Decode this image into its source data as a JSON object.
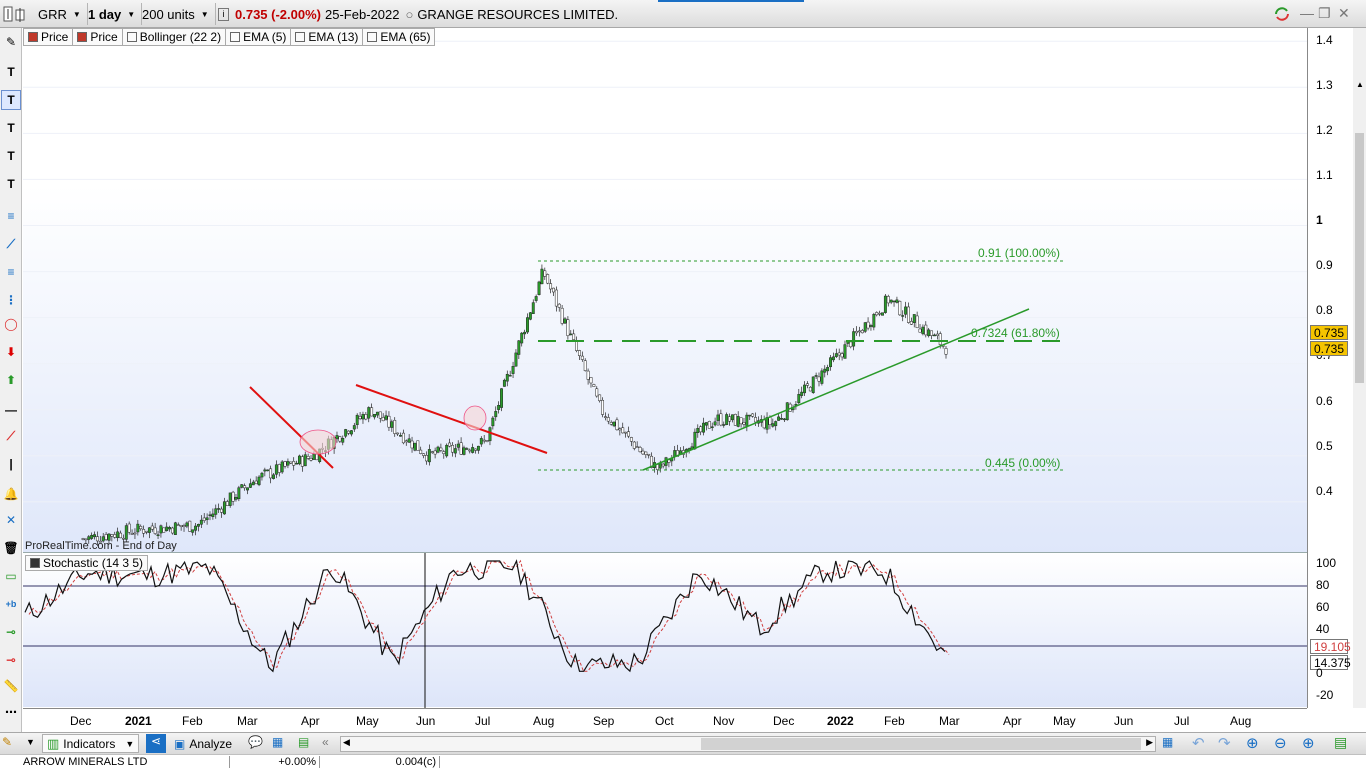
{
  "toolbar": {
    "ticker": "GRR",
    "timeframe": "1 day",
    "units": "200 units",
    "price_change": "0.735 (-2.00%)",
    "date": "25-Feb-2022",
    "company": "GRANGE RESOURCES LIMITED."
  },
  "legend": {
    "price_tab_1": "Price",
    "price_tab_2": "Price",
    "bollinger": "Bollinger (22 2)",
    "ema5": "EMA (5)",
    "ema13": "EMA (13)",
    "ema65": "EMA (65)"
  },
  "price_axis": {
    "ticks": [
      "1.4",
      "1.3",
      "1.2",
      "1.1",
      "1",
      "0.9",
      "0.8",
      "0.7",
      "0.6",
      "0.5",
      "0.4"
    ],
    "last_price": "0.735",
    "last_price_2": "0.735"
  },
  "fib": {
    "top_label": "0.91 (100.00%)",
    "mid_label": "0.7324 (61.80%)",
    "bottom_label": "0.445 (0.00%)"
  },
  "watermark": "ProRealTime.com - End of Day",
  "stochastic": {
    "title": "Stochastic (14 3 5)",
    "ticks": [
      "100",
      "80",
      "60",
      "40",
      "20",
      "0",
      "-20"
    ],
    "value_k": "19.105",
    "value_d": "14.375"
  },
  "xaxis": {
    "labels": [
      "Dec",
      "2021",
      "Feb",
      "Mar",
      "Apr",
      "May",
      "Jun",
      "Jul",
      "Aug",
      "Sep",
      "Oct",
      "Nov",
      "Dec",
      "2022",
      "Feb",
      "Mar",
      "Apr",
      "May",
      "Jun",
      "Jul",
      "Aug"
    ]
  },
  "bottom_toolbar": {
    "indicators": "Indicators",
    "analyze": "Analyze"
  },
  "status_row": {
    "name": "ARROW MINERALS LTD",
    "change": "+0.00%",
    "value": "0.004(c)"
  },
  "colors": {
    "bull": "#2a9a2a",
    "trend_red": "#e01010",
    "fib": "#2a9a2a",
    "badge": "#f5c400"
  },
  "chart_data": [
    {
      "type": "line",
      "title": "GRANGE RESOURCES LIMITED.",
      "x": [
        "Dec",
        "2021",
        "Feb",
        "Mar",
        "Apr",
        "May",
        "Jun",
        "Jul",
        "Aug",
        "Sep",
        "Oct",
        "Nov",
        "Dec",
        "2022",
        "Feb",
        "Mar"
      ],
      "series": [
        {
          "values": [
            0.32,
            0.34,
            0.35,
            0.45,
            0.5,
            0.6,
            0.5,
            0.53,
            0.9,
            0.6,
            0.47,
            0.58,
            0.57,
            0.7,
            0.84,
            0.735
          ]
        }
      ],
      "ylim": [
        0.3,
        1.42
      ]
    },
    {
      "type": "line",
      "title": "Stochastic (14 3 5)",
      "x": [
        "Dec",
        "2021",
        "Feb",
        "Mar",
        "Apr",
        "May",
        "Jun",
        "Jul",
        "Aug",
        "Sep",
        "Oct",
        "Nov",
        "Dec",
        "2022",
        "Feb",
        "Mar"
      ],
      "series": [
        {
          "values": [
            50,
            88,
            85,
            92,
            5,
            95,
            10,
            90,
            95,
            5,
            10,
            90,
            40,
            90,
            90,
            14.375
          ]
        }
      ],
      "ylim": [
        -30,
        105
      ]
    }
  ]
}
